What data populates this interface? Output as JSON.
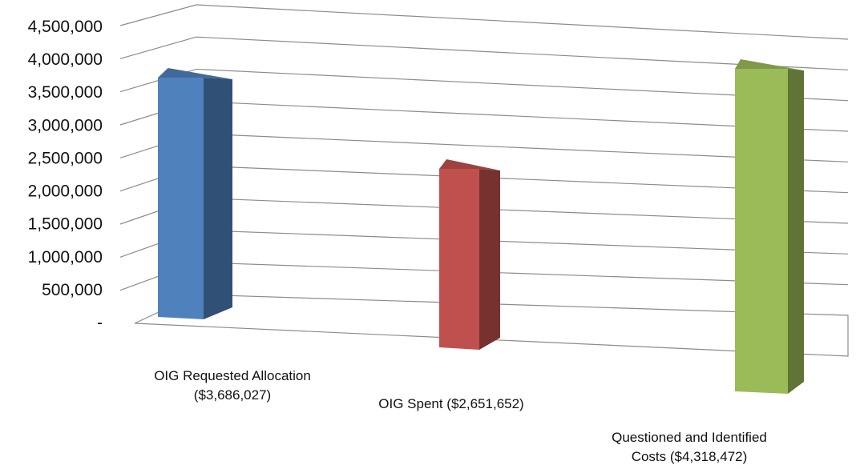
{
  "chart_data": {
    "type": "bar",
    "title": "",
    "xlabel": "",
    "ylabel": "",
    "ylim": [
      0,
      4500000
    ],
    "y_ticks": [
      "-",
      "500,000",
      "1,000,000",
      "1,500,000",
      "2,000,000",
      "2,500,000",
      "3,000,000",
      "3,500,000",
      "4,000,000",
      "4,500,000"
    ],
    "categories": [
      [
        "OIG Requested Allocation",
        "($3,686,027)"
      ],
      [
        "OIG Spent ($2,651,652)"
      ],
      [
        "Questioned and Identified",
        "Costs ($4,318,472)"
      ]
    ],
    "values": [
      3686027,
      2651652,
      4318472
    ],
    "colors": [
      "#4F81BD",
      "#C0504D",
      "#9BBB59"
    ],
    "grid": true,
    "style": "3d-perspective"
  }
}
